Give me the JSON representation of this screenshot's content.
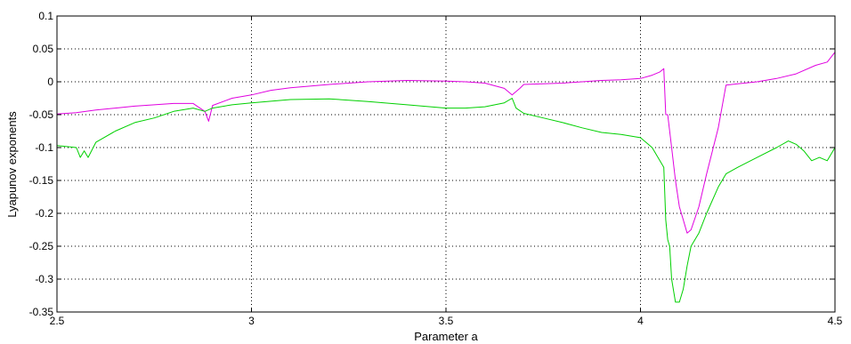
{
  "chart_data": {
    "type": "line",
    "title": "",
    "xlabel": "Parameter a",
    "ylabel": "Lyapunov exponents",
    "xlim": [
      2.5,
      4.5
    ],
    "ylim": [
      -0.35,
      0.1
    ],
    "grid": true,
    "grid_style": "dotted",
    "xticks": [
      2.5,
      3,
      3.5,
      4,
      4.5
    ],
    "xtick_labels": [
      "2.5",
      "3",
      "3.5",
      "4",
      "4.5"
    ],
    "yticks": [
      -0.35,
      -0.3,
      -0.25,
      -0.2,
      -0.15,
      -0.1,
      -0.05,
      0,
      0.05,
      0.1
    ],
    "ytick_labels": [
      "-0.35",
      "-0.3",
      "-0.25",
      "-0.2",
      "-0.15",
      "-0.1",
      "-0.05",
      "0",
      "0.05",
      "0.1"
    ],
    "series": [
      {
        "color": "#e000e0",
        "points": [
          [
            2.5,
            -0.049
          ],
          [
            2.55,
            -0.047
          ],
          [
            2.6,
            -0.043
          ],
          [
            2.65,
            -0.04
          ],
          [
            2.7,
            -0.037
          ],
          [
            2.75,
            -0.035
          ],
          [
            2.8,
            -0.033
          ],
          [
            2.85,
            -0.033
          ],
          [
            2.88,
            -0.045
          ],
          [
            2.89,
            -0.06
          ],
          [
            2.9,
            -0.036
          ],
          [
            2.95,
            -0.025
          ],
          [
            3.0,
            -0.02
          ],
          [
            3.05,
            -0.013
          ],
          [
            3.1,
            -0.009
          ],
          [
            3.2,
            -0.004
          ],
          [
            3.3,
            0.0
          ],
          [
            3.4,
            0.002
          ],
          [
            3.5,
            0.001
          ],
          [
            3.55,
            0.0
          ],
          [
            3.6,
            -0.002
          ],
          [
            3.65,
            -0.01
          ],
          [
            3.67,
            -0.02
          ],
          [
            3.69,
            -0.01
          ],
          [
            3.7,
            -0.004
          ],
          [
            3.75,
            -0.003
          ],
          [
            3.8,
            -0.002
          ],
          [
            3.85,
            0.0
          ],
          [
            3.9,
            0.002
          ],
          [
            3.95,
            0.003
          ],
          [
            4.0,
            0.005
          ],
          [
            4.03,
            0.01
          ],
          [
            4.05,
            0.015
          ],
          [
            4.06,
            0.02
          ],
          [
            4.065,
            -0.05
          ],
          [
            4.07,
            -0.05
          ],
          [
            4.08,
            -0.1
          ],
          [
            4.09,
            -0.15
          ],
          [
            4.1,
            -0.19
          ],
          [
            4.11,
            -0.21
          ],
          [
            4.12,
            -0.23
          ],
          [
            4.13,
            -0.225
          ],
          [
            4.15,
            -0.19
          ],
          [
            4.17,
            -0.14
          ],
          [
            4.2,
            -0.07
          ],
          [
            4.22,
            -0.005
          ],
          [
            4.25,
            -0.003
          ],
          [
            4.3,
            0.0
          ],
          [
            4.35,
            0.005
          ],
          [
            4.4,
            0.012
          ],
          [
            4.45,
            0.025
          ],
          [
            4.48,
            0.03
          ],
          [
            4.5,
            0.045
          ]
        ]
      },
      {
        "color": "#00d000",
        "points": [
          [
            2.5,
            -0.097
          ],
          [
            2.55,
            -0.1
          ],
          [
            2.56,
            -0.115
          ],
          [
            2.57,
            -0.105
          ],
          [
            2.58,
            -0.115
          ],
          [
            2.6,
            -0.092
          ],
          [
            2.65,
            -0.075
          ],
          [
            2.7,
            -0.062
          ],
          [
            2.75,
            -0.055
          ],
          [
            2.8,
            -0.045
          ],
          [
            2.85,
            -0.04
          ],
          [
            2.88,
            -0.045
          ],
          [
            2.9,
            -0.04
          ],
          [
            2.95,
            -0.035
          ],
          [
            3.0,
            -0.032
          ],
          [
            3.1,
            -0.027
          ],
          [
            3.2,
            -0.026
          ],
          [
            3.3,
            -0.03
          ],
          [
            3.4,
            -0.035
          ],
          [
            3.5,
            -0.04
          ],
          [
            3.55,
            -0.04
          ],
          [
            3.6,
            -0.038
          ],
          [
            3.65,
            -0.032
          ],
          [
            3.67,
            -0.025
          ],
          [
            3.68,
            -0.04
          ],
          [
            3.7,
            -0.048
          ],
          [
            3.75,
            -0.055
          ],
          [
            3.8,
            -0.062
          ],
          [
            3.85,
            -0.07
          ],
          [
            3.9,
            -0.077
          ],
          [
            3.95,
            -0.08
          ],
          [
            4.0,
            -0.085
          ],
          [
            4.03,
            -0.1
          ],
          [
            4.05,
            -0.12
          ],
          [
            4.06,
            -0.13
          ],
          [
            4.065,
            -0.21
          ],
          [
            4.07,
            -0.24
          ],
          [
            4.075,
            -0.25
          ],
          [
            4.08,
            -0.3
          ],
          [
            4.09,
            -0.335
          ],
          [
            4.1,
            -0.335
          ],
          [
            4.11,
            -0.315
          ],
          [
            4.12,
            -0.28
          ],
          [
            4.13,
            -0.25
          ],
          [
            4.15,
            -0.23
          ],
          [
            4.17,
            -0.2
          ],
          [
            4.2,
            -0.16
          ],
          [
            4.22,
            -0.14
          ],
          [
            4.25,
            -0.13
          ],
          [
            4.3,
            -0.115
          ],
          [
            4.35,
            -0.1
          ],
          [
            4.38,
            -0.09
          ],
          [
            4.4,
            -0.095
          ],
          [
            4.42,
            -0.105
          ],
          [
            4.44,
            -0.12
          ],
          [
            4.46,
            -0.115
          ],
          [
            4.48,
            -0.12
          ],
          [
            4.5,
            -0.1
          ]
        ]
      }
    ]
  }
}
